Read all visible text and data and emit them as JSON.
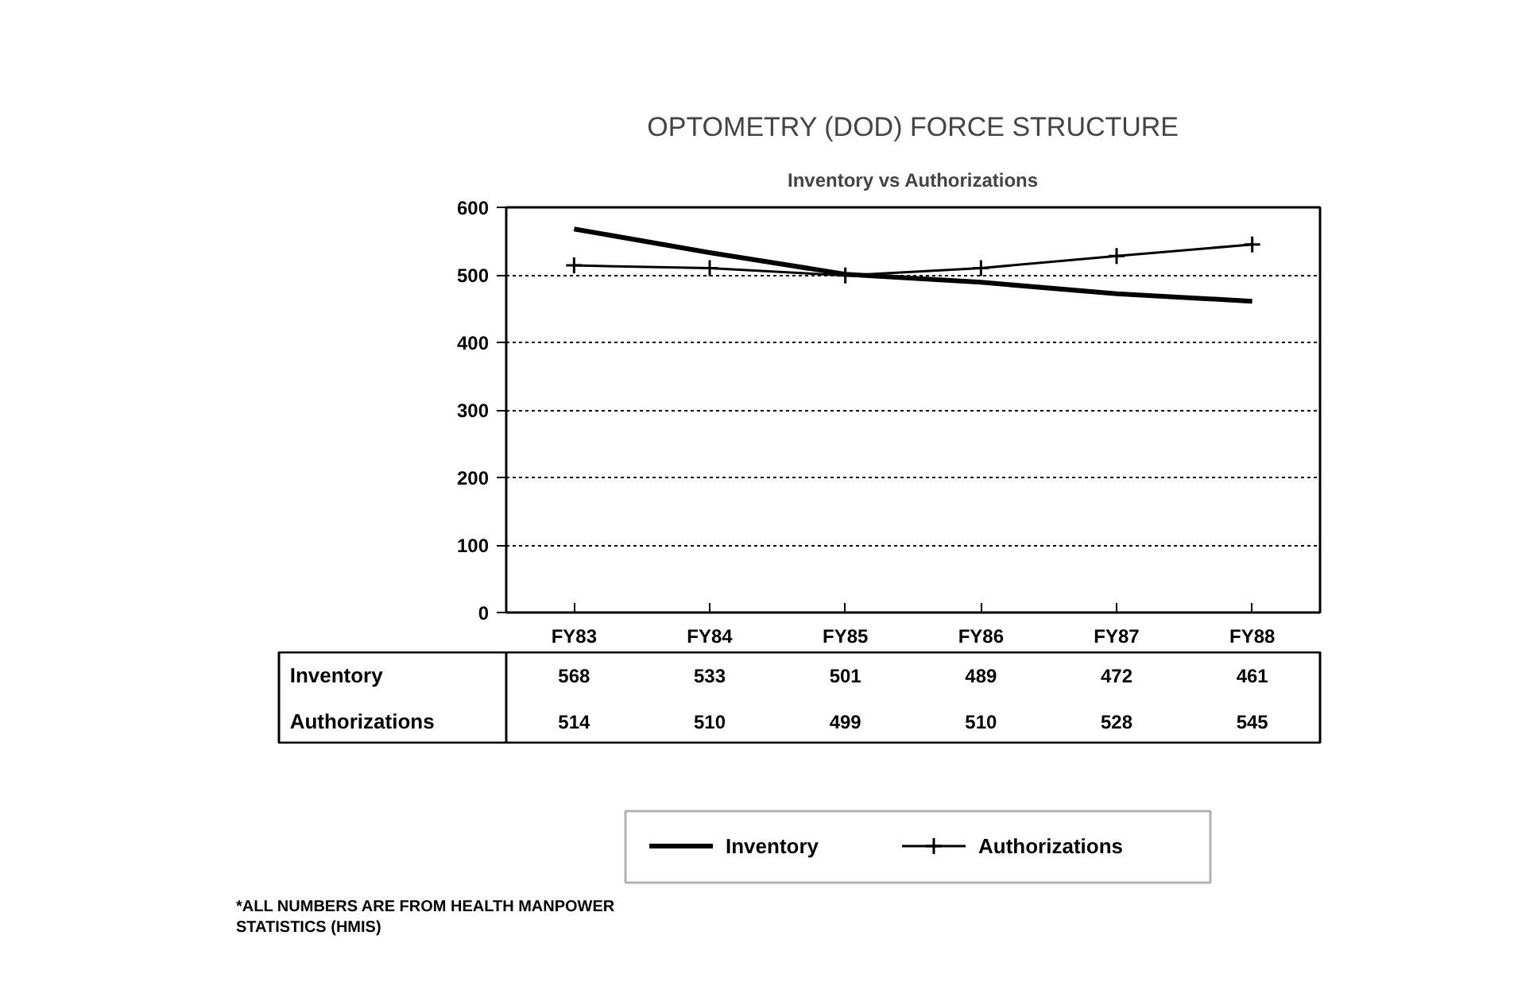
{
  "chart_data": {
    "type": "line",
    "title": "OPTOMETRY (DOD) FORCE STRUCTURE",
    "subtitle": "Inventory vs Authorizations",
    "categories": [
      "FY83",
      "FY84",
      "FY85",
      "FY86",
      "FY87",
      "FY88"
    ],
    "series": [
      {
        "name": "Inventory",
        "color": "#000000",
        "marker": "none",
        "values": [
          568,
          533,
          501,
          489,
          472,
          461
        ]
      },
      {
        "name": "Authorizations",
        "color": "#000000",
        "marker": "cross",
        "values": [
          514,
          510,
          499,
          510,
          528,
          545
        ]
      }
    ],
    "ylim": [
      0,
      600
    ],
    "yticks": [
      0,
      100,
      200,
      300,
      400,
      500,
      600
    ],
    "grid": "y",
    "line_style": "solid",
    "data_labels": true,
    "legend": "bottom",
    "annotations": [
      "*ALL NUMBERS ARE FROM HEALTH MANPOWER\nSTATISTICS (HMIS)"
    ]
  }
}
